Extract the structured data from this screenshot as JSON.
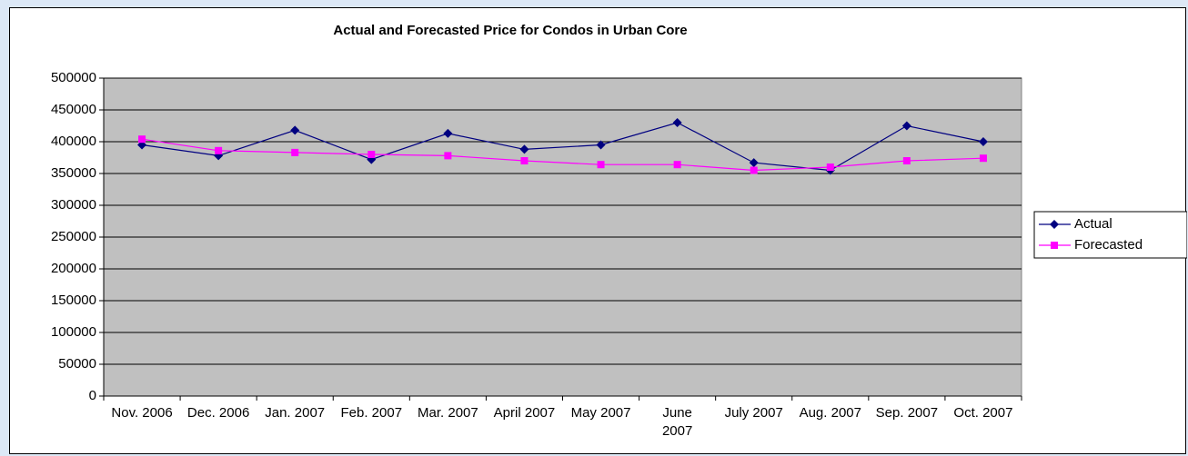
{
  "chart_data": {
    "type": "line",
    "title": "Actual and Forecasted Price for Condos in Urban Core",
    "categories": [
      "Nov. 2006",
      "Dec. 2006",
      "Jan. 2007",
      "Feb. 2007",
      "Mar. 2007",
      "April 2007",
      "May 2007",
      "June 2007",
      "July 2007",
      "Aug. 2007",
      "Sep. 2007",
      "Oct. 2007"
    ],
    "series": [
      {
        "name": "Actual",
        "color": "#000080",
        "marker": "diamond",
        "values": [
          395000,
          378000,
          418000,
          372000,
          413000,
          388000,
          395000,
          430000,
          367000,
          355000,
          425000,
          400000
        ]
      },
      {
        "name": "Forecasted",
        "color": "#ff00ff",
        "marker": "square",
        "values": [
          404000,
          386000,
          383000,
          380000,
          378000,
          370000,
          364000,
          364000,
          355000,
          360000,
          370000,
          374000
        ]
      }
    ],
    "ylim": [
      0,
      500000
    ],
    "yticks": [
      0,
      50000,
      100000,
      150000,
      200000,
      250000,
      300000,
      350000,
      400000,
      450000,
      500000
    ],
    "grid": true,
    "legend": "right",
    "plot_background": "#c0c0c0"
  }
}
